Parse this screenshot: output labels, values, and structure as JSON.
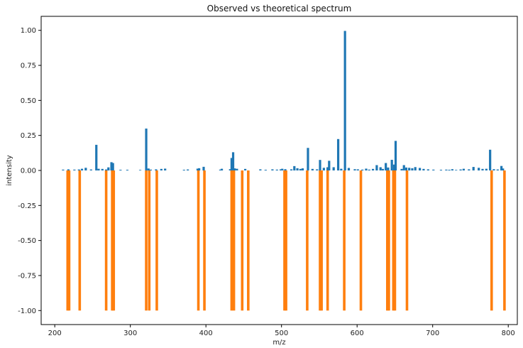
{
  "chart_data": {
    "type": "bar",
    "title": "Observed vs theoretical spectrum",
    "xlabel": "m/z",
    "ylabel": "intensity",
    "xlim": [
      182,
      812
    ],
    "ylim": [
      -1.1,
      1.1
    ],
    "xticks": [
      200,
      300,
      400,
      500,
      600,
      700,
      800
    ],
    "yticks": [
      -1.0,
      -0.75,
      -0.5,
      -0.25,
      0.0,
      0.25,
      0.5,
      0.75,
      1.0
    ],
    "grid": false,
    "legend": "none",
    "series": [
      {
        "color": "#1f77b4",
        "x": [
          211,
          218,
          226,
          232,
          236,
          241,
          248,
          255,
          258,
          263,
          268,
          271,
          275,
          277,
          287,
          296,
          313,
          321,
          324,
          327,
          334,
          341,
          346,
          371,
          376,
          389,
          391,
          397,
          419,
          421,
          432,
          434,
          436,
          438,
          441,
          452,
          472,
          479,
          488,
          494,
          499,
          501,
          505,
          513,
          517,
          521,
          525,
          528,
          535,
          541,
          547,
          551,
          556,
          561,
          563,
          569,
          575,
          579,
          584,
          589,
          597,
          601,
          607,
          612,
          616,
          621,
          626,
          631,
          634,
          638,
          641,
          646,
          649,
          651,
          659,
          662,
          665,
          669,
          673,
          677,
          683,
          688,
          694,
          701,
          711,
          718,
          722,
          726,
          731,
          737,
          741,
          748,
          754,
          761,
          766,
          771,
          776,
          781,
          786,
          791,
          793
        ],
        "values": [
          0.006,
          0.008,
          0.006,
          0.007,
          0.012,
          0.019,
          0.007,
          0.183,
          0.012,
          0.011,
          0.007,
          0.022,
          0.059,
          0.053,
          0.005,
          0.005,
          0.004,
          0.299,
          0.014,
          0.006,
          0.008,
          0.011,
          0.013,
          0.005,
          0.007,
          0.013,
          0.016,
          0.026,
          0.006,
          0.012,
          0.009,
          0.089,
          0.13,
          0.015,
          0.012,
          0.011,
          0.008,
          0.005,
          0.008,
          0.006,
          0.008,
          0.012,
          0.009,
          0.008,
          0.031,
          0.016,
          0.011,
          0.015,
          0.161,
          0.011,
          0.008,
          0.075,
          0.019,
          0.023,
          0.069,
          0.023,
          0.224,
          0.012,
          0.996,
          0.018,
          0.009,
          0.008,
          0.006,
          0.013,
          0.006,
          0.011,
          0.038,
          0.023,
          0.011,
          0.053,
          0.021,
          0.076,
          0.042,
          0.211,
          0.011,
          0.038,
          0.021,
          0.019,
          0.016,
          0.024,
          0.018,
          0.011,
          0.008,
          0.006,
          0.005,
          0.006,
          0.005,
          0.009,
          0.004,
          0.007,
          0.012,
          0.008,
          0.025,
          0.019,
          0.011,
          0.012,
          0.148,
          0.009,
          0.007,
          0.032,
          0.014
        ]
      },
      {
        "color": "#ff7f0e",
        "x": [
          217,
          219,
          233,
          268,
          276,
          278,
          321,
          325,
          335,
          390,
          398,
          434,
          437,
          448,
          456,
          504,
          506,
          534,
          551,
          553,
          561,
          583,
          605,
          640,
          642,
          648,
          650,
          666,
          778,
          795
        ],
        "values": [
          -1,
          -1,
          -1,
          -1,
          -1,
          -1,
          -1,
          -1,
          -1,
          -1,
          -1,
          -1,
          -1,
          -1,
          -1,
          -1,
          -1,
          -1,
          -1,
          -1,
          -1,
          -1,
          -1,
          -1,
          -1,
          -1,
          -1,
          -1,
          -1,
          -1
        ]
      }
    ]
  }
}
